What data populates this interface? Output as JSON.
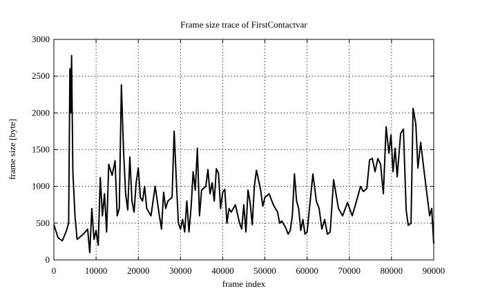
{
  "chart_data": {
    "type": "line",
    "title": "Frame size trace of FirstContactvar",
    "x_label": "frame index",
    "y_label": "frame size [byte]",
    "xlim": [
      0,
      90000
    ],
    "ylim": [
      0,
      3000
    ],
    "xticks": [
      0,
      10000,
      20000,
      30000,
      40000,
      50000,
      60000,
      70000,
      80000,
      90000
    ],
    "yticks": [
      0,
      500,
      1000,
      1500,
      2000,
      2500,
      3000
    ],
    "grid": true,
    "series": [
      {
        "color": "#000000",
        "x": [
          0,
          1000,
          2000,
          3000,
          3500,
          3800,
          4000,
          4200,
          4500,
          5000,
          5500,
          7000,
          8000,
          8500,
          9000,
          9500,
          10000,
          10500,
          11000,
          11500,
          12000,
          12500,
          13000,
          13800,
          14500,
          15000,
          15500,
          16000,
          16500,
          17000,
          17500,
          18000,
          18500,
          19000,
          19500,
          20000,
          20500,
          21000,
          21500,
          22000,
          23000,
          24000,
          25000,
          25500,
          26000,
          26500,
          27000,
          28000,
          28500,
          29000,
          29500,
          30000,
          30500,
          31000,
          31500,
          32000,
          32500,
          33000,
          33500,
          34000,
          34500,
          35000,
          36000,
          36500,
          37000,
          37500,
          38000,
          38500,
          39000,
          39500,
          40000,
          40500,
          41000,
          41500,
          42000,
          43000,
          44000,
          44500,
          45000,
          45500,
          46000,
          46500,
          47000,
          47500,
          48000,
          49000,
          49500,
          50000,
          51000,
          52000,
          53000,
          53500,
          54000,
          55000,
          55500,
          56000,
          56500,
          57000,
          57500,
          58000,
          58500,
          59000,
          59500,
          60000,
          61370,
          62190,
          62850,
          63500,
          64160,
          64810,
          65470,
          66280,
          67430,
          68410,
          69560,
          70700,
          71690,
          72670,
          73320,
          74140,
          74800,
          75450,
          76100,
          76760,
          77410,
          78070,
          78720,
          79380,
          79870,
          80360,
          80850,
          81340,
          82160,
          82820,
          83470,
          83960,
          84620,
          85110,
          85760,
          86250,
          86910,
          87730,
          88380,
          89030,
          89520,
          90000
        ],
        "values": [
          480,
          300,
          260,
          400,
          500,
          2600,
          2000,
          2780,
          1200,
          600,
          280,
          350,
          420,
          100,
          700,
          280,
          400,
          200,
          1120,
          600,
          900,
          380,
          1300,
          1150,
          1350,
          600,
          700,
          2380,
          1500,
          900,
          680,
          1400,
          800,
          650,
          1050,
          1250,
          850,
          800,
          1000,
          700,
          600,
          1000,
          600,
          420,
          920,
          700,
          800,
          850,
          1750,
          1100,
          500,
          420,
          550,
          380,
          800,
          380,
          700,
          1200,
          950,
          1520,
          600,
          950,
          1000,
          1230,
          900,
          1050,
          800,
          1240,
          1180,
          700,
          920,
          960,
          500,
          700,
          650,
          750,
          500,
          420,
          750,
          380,
          950,
          780,
          480,
          1000,
          1220,
          950,
          730,
          850,
          900,
          750,
          650,
          500,
          530,
          430,
          350,
          400,
          600,
          1170,
          800,
          700,
          400,
          550,
          350,
          380,
          1170,
          800,
          700,
          420,
          550,
          350,
          380,
          1090,
          700,
          600,
          780,
          600,
          800,
          1000,
          930,
          970,
          1360,
          1380,
          1200,
          1380,
          1300,
          900,
          1810,
          1450,
          1700,
          1200,
          1520,
          1130,
          1720,
          1780,
          680,
          470,
          500,
          2060,
          1850,
          1250,
          1600,
          1200,
          900,
          600,
          700,
          220
        ]
      }
    ]
  }
}
